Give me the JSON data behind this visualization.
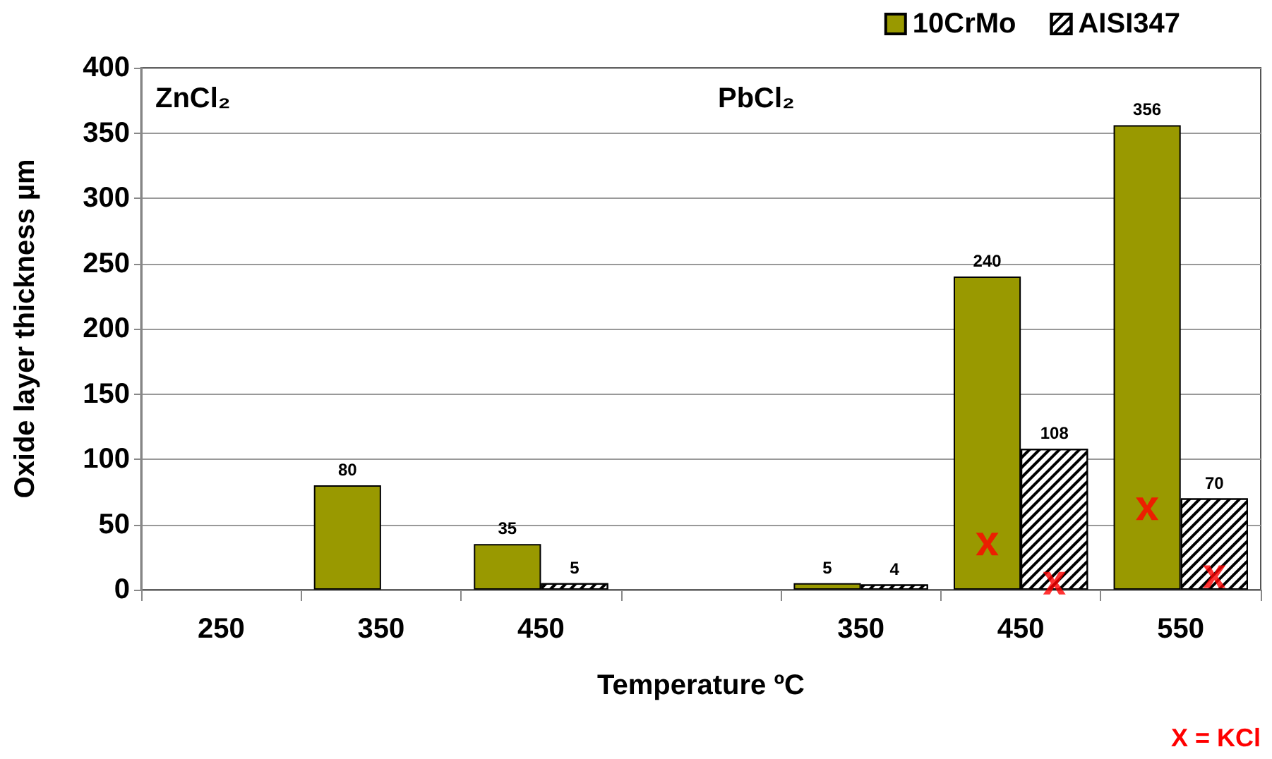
{
  "chart_data": {
    "type": "bar",
    "xlabel": "Temperature ºC",
    "ylabel": "Oxide layer thickness µm",
    "categories": [
      "250",
      "350",
      "450",
      null,
      "350",
      "450",
      "550"
    ],
    "series": [
      {
        "name": "10CrMo",
        "color": "#999900",
        "values": [
          null,
          80,
          35,
          null,
          5,
          240,
          356
        ],
        "value_labels": [
          null,
          "80",
          "35",
          null,
          "5",
          "240",
          "356"
        ]
      },
      {
        "name": "AISI347",
        "color": "#ffffff",
        "values": [
          null,
          null,
          5,
          null,
          4,
          108,
          70
        ],
        "value_labels": [
          null,
          null,
          "5",
          null,
          "4",
          "108",
          "70"
        ]
      },
      {
        "type": "scatter",
        "marker": "cross",
        "color": "#ff0000",
        "values": [
          null,
          null,
          null,
          null,
          null,
          35,
          62
        ]
      },
      {
        "type": "scatter",
        "marker": "cross",
        "color": "#ff0000",
        "values": [
          null,
          null,
          null,
          null,
          null,
          5,
          10
        ]
      }
    ],
    "ylim": [
      0,
      400
    ],
    "yticks": [
      0,
      50,
      100,
      150,
      200,
      250,
      300,
      350,
      400
    ],
    "grid": "y",
    "legend": "top right",
    "annotations": [
      "ZnCl₂",
      "PbCl₂",
      "X = KCl"
    ]
  }
}
